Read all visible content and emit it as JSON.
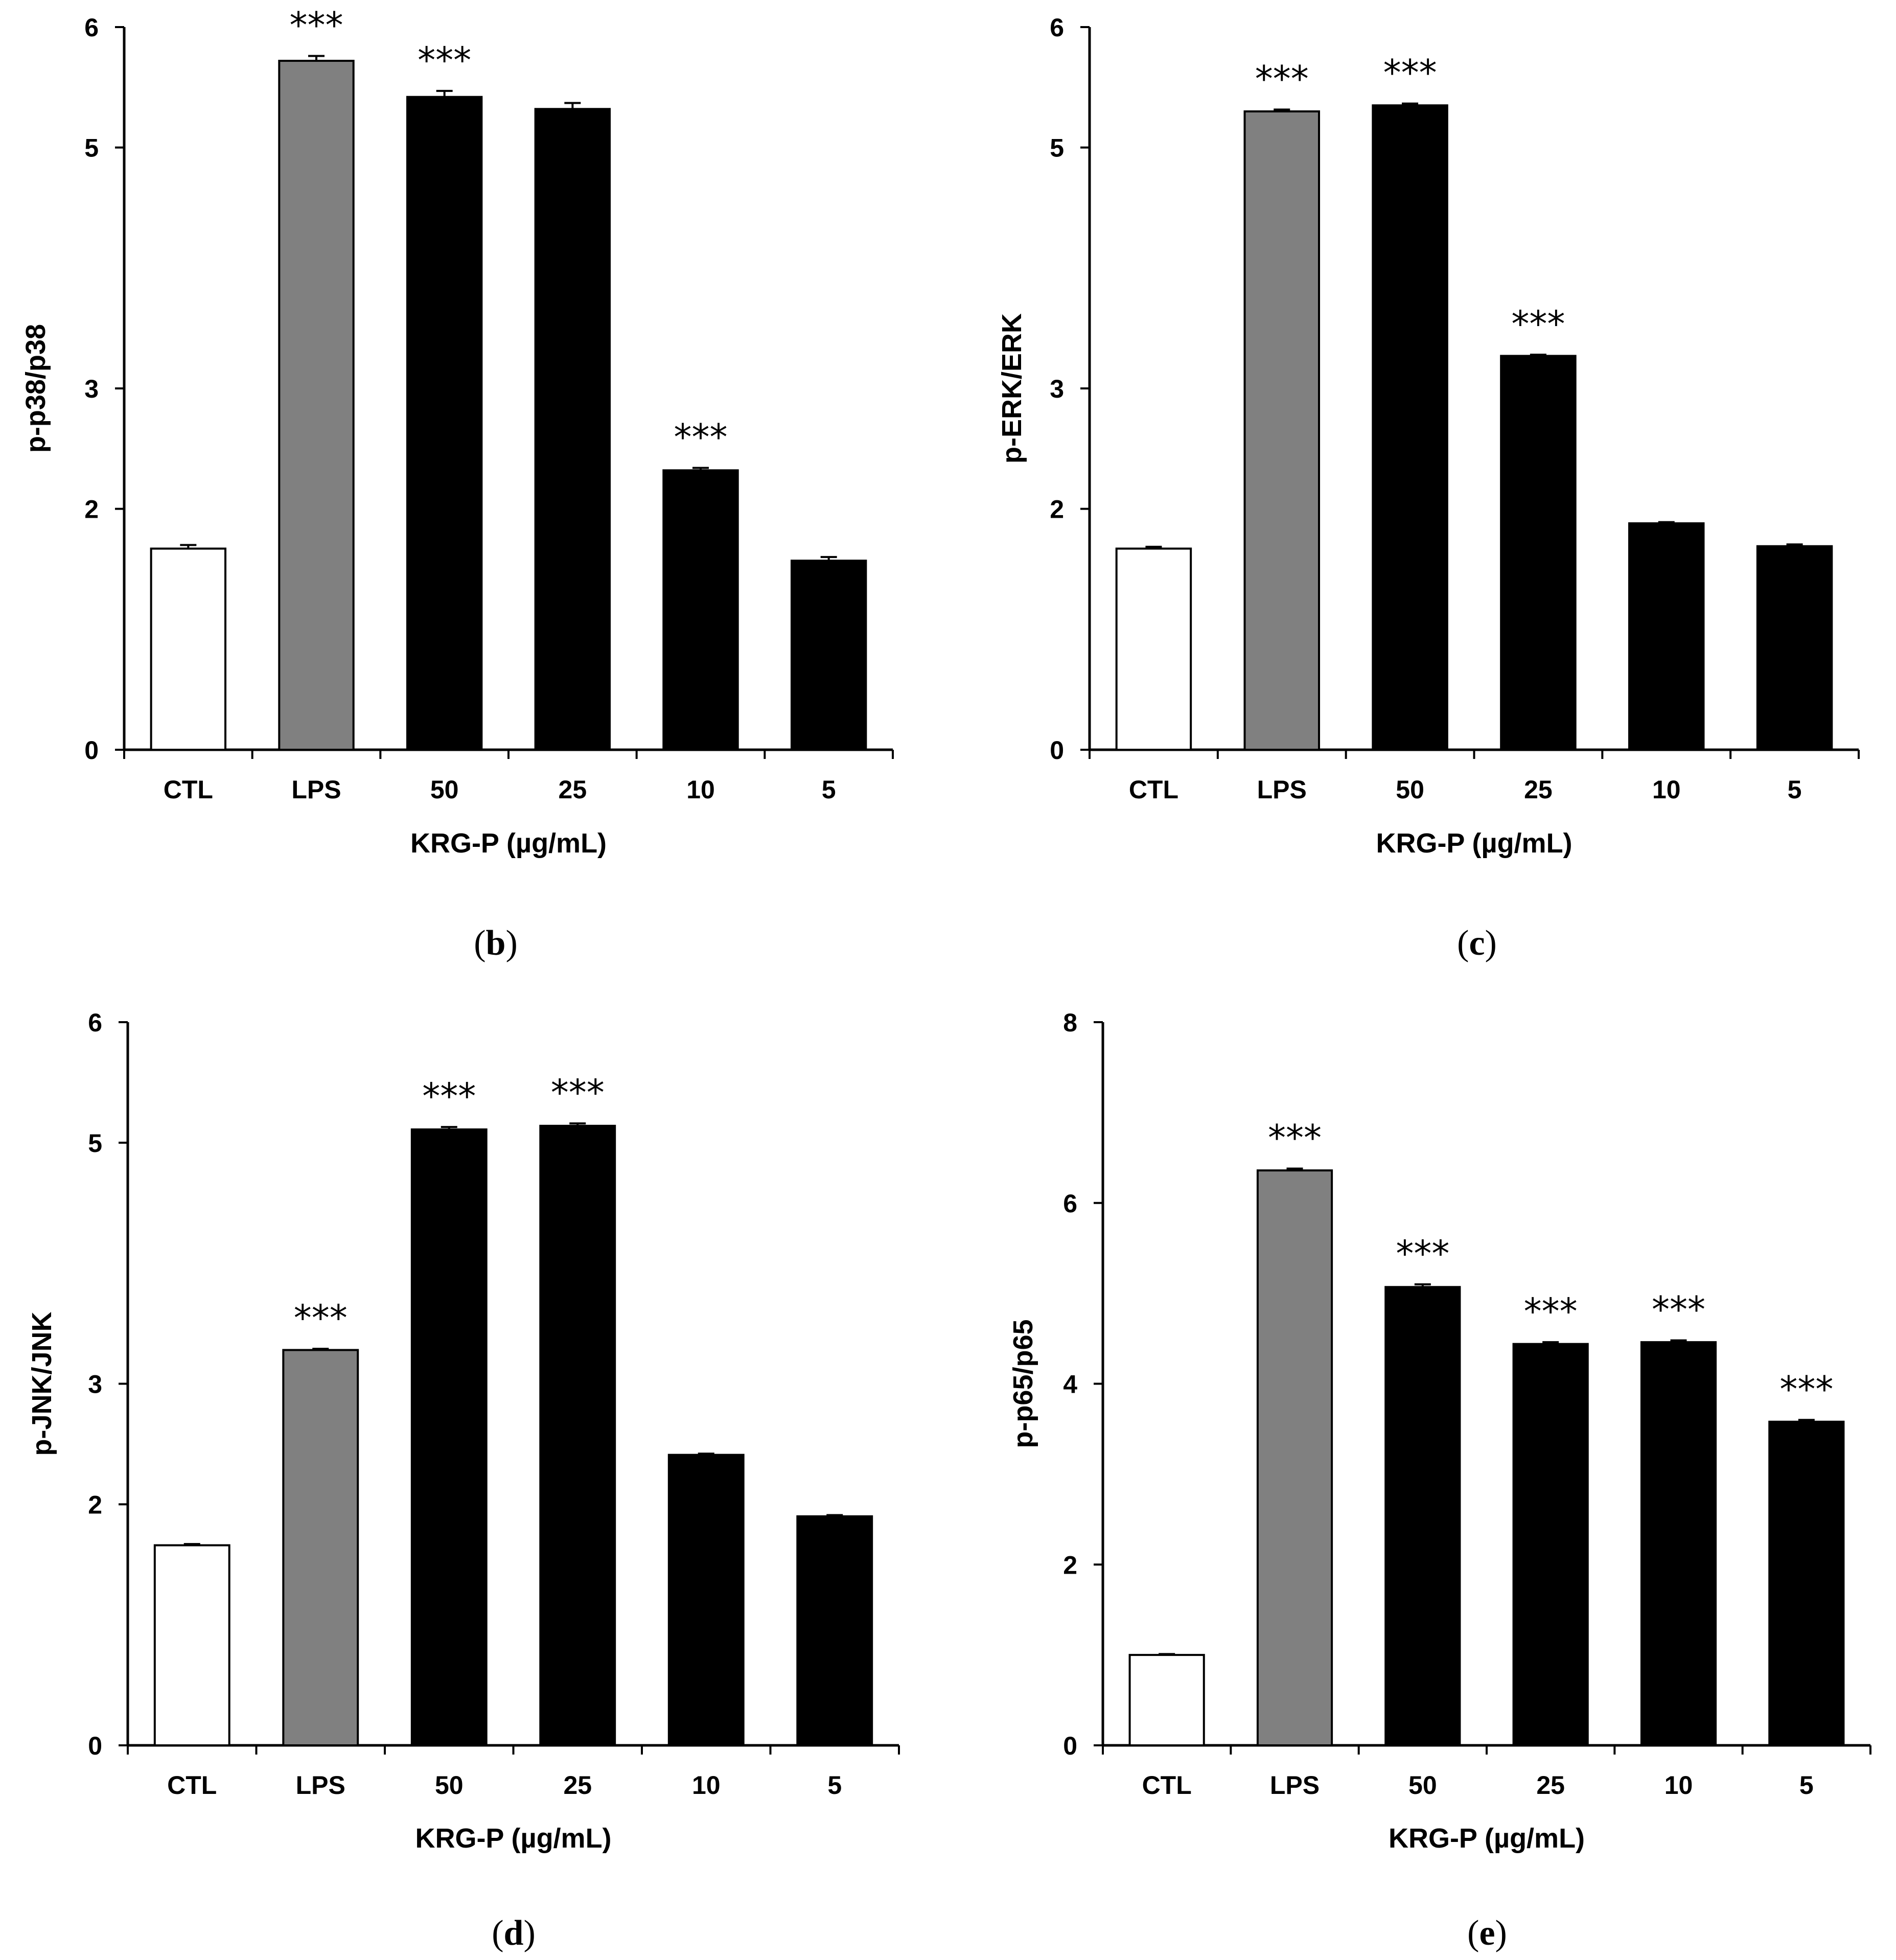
{
  "chart_data": [
    {
      "panel": "b",
      "type": "bar",
      "title": "",
      "caption_open": "(",
      "caption_letter": "b",
      "caption_close": ")",
      "xlabel": "KRG-P (µg/mL)",
      "ylabel": "p-p38/p38",
      "ylim": [
        0,
        6
      ],
      "yticks": [
        0,
        2,
        3,
        5,
        6
      ],
      "ytick_labels": [
        "0",
        "2",
        "3",
        "5",
        "6"
      ],
      "categories": [
        "CTL",
        "LPS",
        "50",
        "25",
        "10",
        "5"
      ],
      "values": [
        1.67,
        5.72,
        5.42,
        5.32,
        2.32,
        1.57
      ],
      "errors": [
        0.03,
        0.04,
        0.05,
        0.05,
        0.02,
        0.03
      ],
      "annotations": [
        "",
        "***",
        "***",
        "",
        "***",
        ""
      ],
      "bar_colors": [
        "#ffffff",
        "#808080",
        "#000000",
        "#000000",
        "#000000",
        "#000000"
      ],
      "grid": false
    },
    {
      "panel": "c",
      "type": "bar",
      "title": "",
      "caption_open": "(",
      "caption_letter": "c",
      "caption_close": ")",
      "xlabel": "KRG-P (µg/mL)",
      "ylabel": "p-ERK/ERK",
      "ylim": [
        0,
        6
      ],
      "yticks": [
        0,
        2,
        3,
        5,
        6
      ],
      "ytick_labels": [
        "0",
        "2",
        "3",
        "5",
        "6"
      ],
      "categories": [
        "CTL",
        "LPS",
        "50",
        "25",
        "10",
        "5"
      ],
      "values": [
        1.67,
        5.3,
        5.35,
        3.27,
        1.88,
        1.69
      ],
      "errors": [
        0.015,
        0.015,
        0.015,
        0.01,
        0.01,
        0.015
      ],
      "annotations": [
        "",
        "***",
        "***",
        "***",
        "",
        ""
      ],
      "bar_colors": [
        "#ffffff",
        "#808080",
        "#000000",
        "#000000",
        "#000000",
        "#000000"
      ],
      "grid": false
    },
    {
      "panel": "d",
      "type": "bar",
      "title": "",
      "caption_open": "(",
      "caption_letter": "d",
      "caption_close": ")",
      "xlabel": "KRG-P (µg/mL)",
      "ylabel": "p-JNK/JNK",
      "ylim": [
        0,
        6
      ],
      "yticks": [
        0,
        2,
        3,
        5,
        6
      ],
      "ytick_labels": [
        "0",
        "2",
        "3",
        "5",
        "6"
      ],
      "categories": [
        "CTL",
        "LPS",
        "50",
        "25",
        "10",
        "5"
      ],
      "values": [
        1.66,
        3.28,
        5.11,
        5.14,
        2.41,
        1.9
      ],
      "errors": [
        0.01,
        0.01,
        0.02,
        0.02,
        0.01,
        0.01
      ],
      "annotations": [
        "",
        "***",
        "***",
        "***",
        "",
        ""
      ],
      "bar_colors": [
        "#ffffff",
        "#808080",
        "#000000",
        "#000000",
        "#000000",
        "#000000"
      ],
      "grid": false
    },
    {
      "panel": "e",
      "type": "bar",
      "title": "",
      "caption_open": "(",
      "caption_letter": "e",
      "caption_close": ")",
      "xlabel": "KRG-P (µg/mL)",
      "ylabel": "p-p65/p65",
      "ylim": [
        0,
        8
      ],
      "yticks": [
        0,
        2,
        4,
        6,
        8
      ],
      "ytick_labels": [
        "0",
        "2",
        "4",
        "6",
        "8"
      ],
      "categories": [
        "CTL",
        "LPS",
        "50",
        "25",
        "10",
        "5"
      ],
      "values": [
        1.0,
        6.36,
        5.07,
        4.44,
        4.46,
        3.58
      ],
      "errors": [
        0.01,
        0.02,
        0.03,
        0.02,
        0.02,
        0.02
      ],
      "annotations": [
        "",
        "***",
        "***",
        "***",
        "***",
        "***"
      ],
      "bar_colors": [
        "#ffffff",
        "#808080",
        "#000000",
        "#000000",
        "#000000",
        "#000000"
      ],
      "grid": false
    }
  ]
}
